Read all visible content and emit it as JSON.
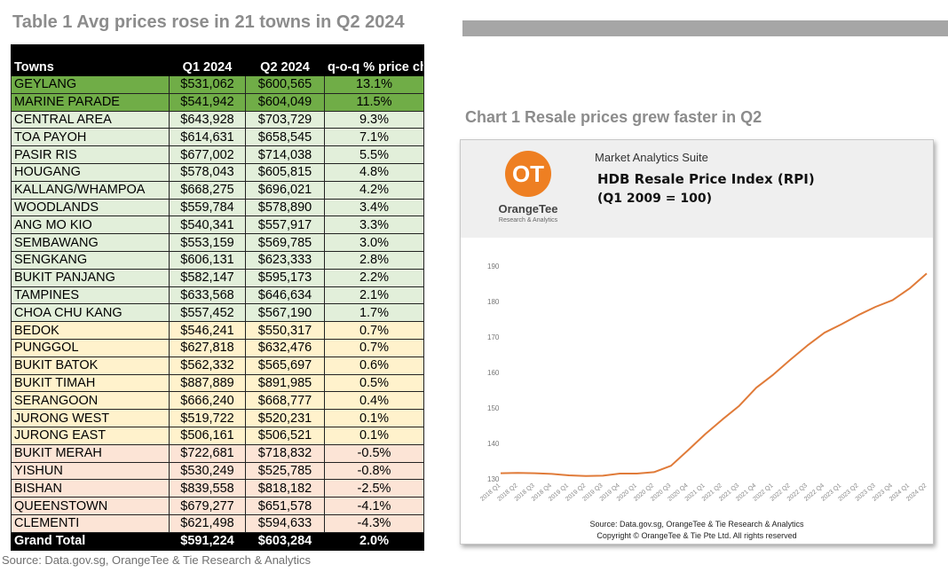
{
  "table": {
    "title": "Table 1 Avg prices rose in 21 towns in Q2 2024",
    "headers": {
      "towns": "Towns",
      "q1": "Q1 2024",
      "q2": "Q2 2024",
      "change": "q-o-q % price change"
    },
    "rows": [
      {
        "town": "GEYLANG",
        "q1": "$531,062",
        "q2": "$600,565",
        "change": "13.1%",
        "band": "dkgreen"
      },
      {
        "town": "MARINE PARADE",
        "q1": "$541,942",
        "q2": "$604,049",
        "change": "11.5%",
        "band": "dkgreen"
      },
      {
        "town": "CENTRAL AREA",
        "q1": "$643,928",
        "q2": "$703,729",
        "change": "9.3%",
        "band": "ltgreen"
      },
      {
        "town": "TOA PAYOH",
        "q1": "$614,631",
        "q2": "$658,545",
        "change": "7.1%",
        "band": "ltgreen"
      },
      {
        "town": "PASIR RIS",
        "q1": "$677,002",
        "q2": "$714,038",
        "change": "5.5%",
        "band": "ltgreen"
      },
      {
        "town": "HOUGANG",
        "q1": "$578,043",
        "q2": "$605,815",
        "change": "4.8%",
        "band": "ltgreen"
      },
      {
        "town": "KALLANG/WHAMPOA",
        "q1": "$668,275",
        "q2": "$696,021",
        "change": "4.2%",
        "band": "ltgreen"
      },
      {
        "town": "WOODLANDS",
        "q1": "$559,784",
        "q2": "$578,890",
        "change": "3.4%",
        "band": "ltgreen"
      },
      {
        "town": "ANG MO KIO",
        "q1": "$540,341",
        "q2": "$557,917",
        "change": "3.3%",
        "band": "ltgreen"
      },
      {
        "town": "SEMBAWANG",
        "q1": "$553,159",
        "q2": "$569,785",
        "change": "3.0%",
        "band": "ltgreen"
      },
      {
        "town": "SENGKANG",
        "q1": "$606,131",
        "q2": "$623,333",
        "change": "2.8%",
        "band": "ltgreen"
      },
      {
        "town": "BUKIT PANJANG",
        "q1": "$582,147",
        "q2": "$595,173",
        "change": "2.2%",
        "band": "ltgreen"
      },
      {
        "town": "TAMPINES",
        "q1": "$633,568",
        "q2": "$646,634",
        "change": "2.1%",
        "band": "ltgreen"
      },
      {
        "town": "CHOA CHU KANG",
        "q1": "$557,452",
        "q2": "$567,190",
        "change": "1.7%",
        "band": "ltgreen"
      },
      {
        "town": "BEDOK",
        "q1": "$546,241",
        "q2": "$550,317",
        "change": "0.7%",
        "band": "yellow"
      },
      {
        "town": "PUNGGOL",
        "q1": "$627,818",
        "q2": "$632,476",
        "change": "0.7%",
        "band": "yellow"
      },
      {
        "town": "BUKIT BATOK",
        "q1": "$562,332",
        "q2": "$565,697",
        "change": "0.6%",
        "band": "yellow"
      },
      {
        "town": "BUKIT TIMAH",
        "q1": "$887,889",
        "q2": "$891,985",
        "change": "0.5%",
        "band": "yellow"
      },
      {
        "town": "SERANGOON",
        "q1": "$666,240",
        "q2": "$668,777",
        "change": "0.4%",
        "band": "yellow"
      },
      {
        "town": "JURONG WEST",
        "q1": "$519,722",
        "q2": "$520,231",
        "change": "0.1%",
        "band": "yellow"
      },
      {
        "town": "JURONG EAST",
        "q1": "$506,161",
        "q2": "$506,521",
        "change": "0.1%",
        "band": "yellow"
      },
      {
        "town": "BUKIT MERAH",
        "q1": "$722,681",
        "q2": "$718,832",
        "change": "-0.5%",
        "band": "pink"
      },
      {
        "town": "YISHUN",
        "q1": "$530,249",
        "q2": "$525,785",
        "change": "-0.8%",
        "band": "pink"
      },
      {
        "town": "BISHAN",
        "q1": "$839,558",
        "q2": "$818,182",
        "change": "-2.5%",
        "band": "pink"
      },
      {
        "town": "QUEENSTOWN",
        "q1": "$679,277",
        "q2": "$651,578",
        "change": "-4.1%",
        "band": "pink"
      },
      {
        "town": "CLEMENTI",
        "q1": "$621,498",
        "q2": "$594,633",
        "change": "-4.3%",
        "band": "pink"
      }
    ],
    "total": {
      "town": "Grand Total",
      "q1": "$591,224",
      "q2": "$603,284",
      "change": "2.0%"
    },
    "source": "Source: Data.gov.sg, OrangeTee & Tie Research & Analytics",
    "colors": {
      "dkgreen": "#70ad47",
      "ltgreen": "#e2efda",
      "yellow": "#fff2cc",
      "pink": "#fce4d6"
    }
  },
  "chart_panel": {
    "title": "Chart 1 Resale prices grew faster in Q2",
    "logo_text": "OT",
    "logo_name": "OrangeTee",
    "logo_sub": "Research & Analytics",
    "suite": "Market Analytics Suite",
    "index_title": "HDB Resale Price Index (RPI)",
    "index_sub": "(Q1 2009 = 100)",
    "footer_source": "Source: Data.gov.sg, OrangeTee & Tie Research & Analytics",
    "footer_copyright": "Copyright © OrangeTee & Tie Pte Ltd. All rights reserved",
    "brand_color": "#ee7f22"
  },
  "chart_data": {
    "type": "line",
    "title": "",
    "xlabel": "",
    "ylabel": "",
    "ylim": [
      130,
      190
    ],
    "yticks": [
      130,
      140,
      150,
      160,
      170,
      180,
      190
    ],
    "grid": false,
    "line_color": "#e07b39",
    "x": [
      "2018 Q1",
      "2018 Q2",
      "2018 Q3",
      "2018 Q4",
      "2019 Q1",
      "2019 Q2",
      "2019 Q3",
      "2019 Q4",
      "2020 Q1",
      "2020 Q2",
      "2020 Q3",
      "2020 Q4",
      "2021 Q1",
      "2021 Q2",
      "2021 Q3",
      "2021 Q4",
      "2022 Q1",
      "2022 Q2",
      "2022 Q3",
      "2022 Q4",
      "2023 Q1",
      "2023 Q2",
      "2023 Q3",
      "2023 Q4",
      "2024 Q1",
      "2024 Q2"
    ],
    "series": [
      {
        "values": [
          131.6,
          131.7,
          131.6,
          131.4,
          131.0,
          130.8,
          130.9,
          131.5,
          131.5,
          131.9,
          133.7,
          138.1,
          142.6,
          146.7,
          150.6,
          155.7,
          159.4,
          163.6,
          167.6,
          171.2,
          173.6,
          176.2,
          178.5,
          180.4,
          183.7,
          187.9
        ]
      }
    ]
  }
}
